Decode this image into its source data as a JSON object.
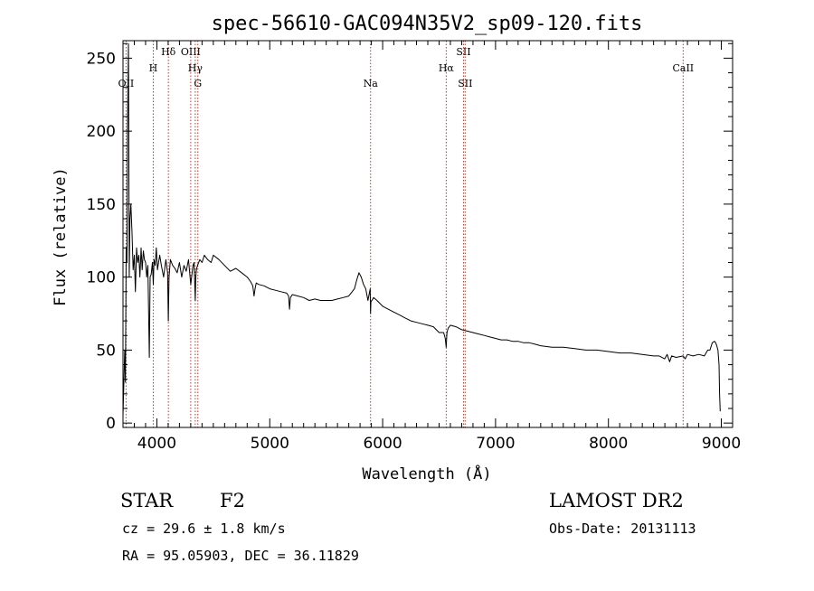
{
  "chart_data": {
    "type": "line",
    "title": "spec-56610-GAC094N35V2_sp09-120.fits",
    "xlabel": "Wavelength (Å)",
    "ylabel": "Flux (relative)",
    "xlim": [
      3700,
      9100
    ],
    "ylim": [
      -3,
      262
    ],
    "x_ticks": [
      4000,
      5000,
      6000,
      7000,
      8000,
      9000
    ],
    "x_tick_labels": [
      "4000",
      "5000",
      "6000",
      "7000",
      "8000",
      "9000"
    ],
    "y_ticks": [
      0,
      50,
      100,
      150,
      200,
      250
    ],
    "y_tick_labels": [
      "0",
      "50",
      "100",
      "150",
      "200",
      "250"
    ],
    "grid": false,
    "series": [
      {
        "x": [
          3700,
          3715,
          3722,
          3728,
          3735,
          3740,
          3748,
          3755,
          3762,
          3770,
          3780,
          3790,
          3800,
          3810,
          3820,
          3830,
          3840,
          3850,
          3860,
          3870,
          3880,
          3890,
          3900,
          3910,
          3920,
          3933,
          3940,
          3950,
          3960,
          3968,
          3975,
          3985,
          3995,
          4005,
          4015,
          4025,
          4040,
          4060,
          4080,
          4095,
          4101,
          4108,
          4120,
          4140,
          4160,
          4180,
          4200,
          4220,
          4240,
          4260,
          4280,
          4300,
          4320,
          4330,
          4340,
          4345,
          4350,
          4360,
          4380,
          4400,
          4420,
          4450,
          4480,
          4500,
          4550,
          4600,
          4650,
          4700,
          4750,
          4800,
          4830,
          4850,
          4861,
          4870,
          4880,
          4900,
          4950,
          5000,
          5050,
          5100,
          5150,
          5167,
          5175,
          5183,
          5200,
          5250,
          5300,
          5350,
          5400,
          5450,
          5500,
          5550,
          5600,
          5650,
          5700,
          5750,
          5770,
          5790,
          5810,
          5830,
          5850,
          5870,
          5890,
          5893,
          5896,
          5920,
          5950,
          6000,
          6050,
          6100,
          6150,
          6200,
          6250,
          6300,
          6350,
          6400,
          6450,
          6500,
          6540,
          6555,
          6563,
          6570,
          6580,
          6600,
          6650,
          6700,
          6750,
          6800,
          6850,
          6900,
          6950,
          7000,
          7050,
          7100,
          7150,
          7200,
          7250,
          7300,
          7350,
          7400,
          7500,
          7600,
          7700,
          7800,
          7900,
          8000,
          8100,
          8200,
          8300,
          8400,
          8450,
          8498,
          8520,
          8542,
          8560,
          8600,
          8662,
          8680,
          8700,
          8750,
          8800,
          8850,
          8880,
          8900,
          8920,
          8940,
          8950,
          8960,
          8970,
          8980,
          8985,
          8990
        ],
        "y": [
          5,
          50,
          28,
          120,
          110,
          200,
          260,
          100,
          140,
          150,
          130,
          105,
          115,
          90,
          120,
          110,
          115,
          100,
          120,
          105,
          118,
          112,
          110,
          100,
          108,
          45,
          100,
          102,
          110,
          95,
          112,
          108,
          120,
          105,
          110,
          115,
          108,
          100,
          112,
          103,
          70,
          100,
          112,
          108,
          106,
          103,
          110,
          100,
          108,
          104,
          112,
          95,
          108,
          110,
          84,
          100,
          105,
          108,
          112,
          110,
          115,
          112,
          110,
          115,
          112,
          108,
          104,
          106,
          103,
          100,
          97,
          94,
          87,
          92,
          96,
          95,
          94,
          92,
          91,
          90,
          89,
          87,
          78,
          86,
          88,
          87,
          86,
          84,
          85,
          84,
          84,
          84,
          85,
          86,
          87,
          92,
          98,
          103,
          100,
          95,
          92,
          84,
          92,
          75,
          83,
          86,
          84,
          80,
          78,
          76,
          74,
          72,
          70,
          69,
          68,
          67,
          66,
          62,
          62,
          58,
          52,
          62,
          65,
          67,
          66,
          64,
          63,
          62,
          61,
          60,
          59,
          58,
          57,
          57,
          56,
          56,
          55,
          55,
          54,
          53,
          52,
          52,
          51,
          50,
          50,
          49,
          48,
          48,
          47,
          46,
          46,
          44,
          47,
          42,
          46,
          45,
          46,
          44,
          47,
          46,
          47,
          46,
          50,
          50,
          55,
          56,
          55,
          53,
          50,
          40,
          20,
          8
        ]
      }
    ],
    "line_markers": [
      {
        "label": "OII",
        "wavelength": 3727,
        "row": 3
      },
      {
        "label": "H",
        "wavelength": 3968,
        "row": 1
      },
      {
        "label": "Hδ",
        "wavelength": 4102,
        "row": 0
      },
      {
        "label": "OIII",
        "wavelength": 4300,
        "row": 0
      },
      {
        "label": "Hγ",
        "wavelength": 4340,
        "row": 1
      },
      {
        "label": "G",
        "wavelength": 4363,
        "row": 2
      },
      {
        "label": "Na",
        "wavelength": 5893,
        "row": 2
      },
      {
        "label": "Hα",
        "wavelength": 6563,
        "row": 1
      },
      {
        "label": "SII",
        "wavelength": 6716,
        "row": 0
      },
      {
        "label": "SII",
        "wavelength": 6731,
        "row": 2
      },
      {
        "label": "CaII",
        "wavelength": 8662,
        "row": 1
      }
    ],
    "colors": {
      "spectrum": "#000000",
      "markers": "#c0392b",
      "axes": "#000000"
    }
  },
  "info": {
    "object_class": "STAR",
    "subclass": "F2",
    "survey": "LAMOST DR2",
    "cz": "cz = 29.6 ± 1.8 km/s",
    "obs_date": "Obs-Date: 20131113",
    "coords": "RA =  95.05903, DEC =  36.11829"
  }
}
